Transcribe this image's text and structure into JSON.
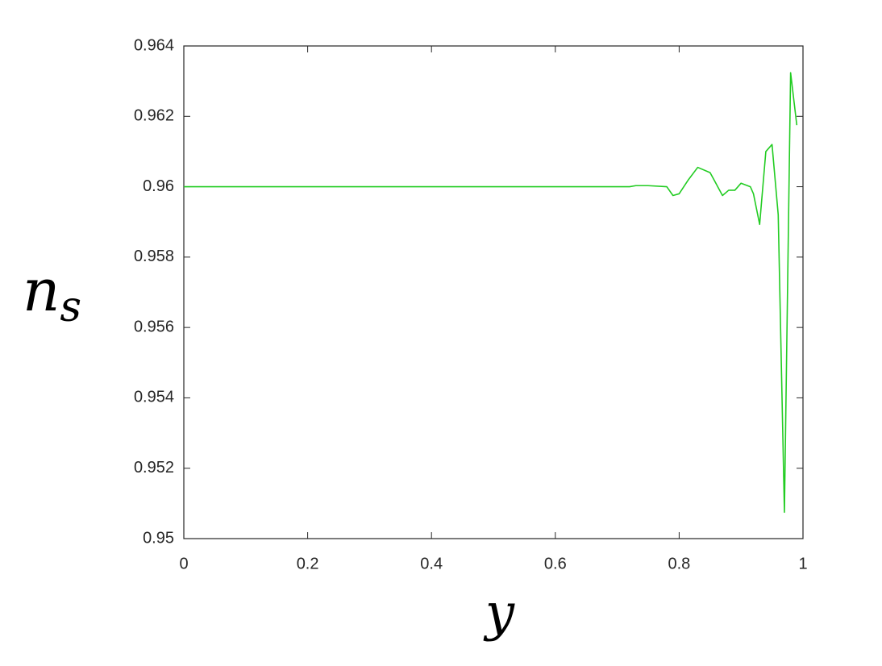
{
  "chart_data": {
    "type": "line",
    "xlabel": "y",
    "ylabel": {
      "text": "n",
      "subscript": "s"
    },
    "x": [
      0,
      0.1,
      0.2,
      0.3,
      0.4,
      0.5,
      0.6,
      0.7,
      0.72,
      0.73,
      0.75,
      0.78,
      0.79,
      0.8,
      0.815,
      0.83,
      0.85,
      0.87,
      0.88,
      0.89,
      0.9,
      0.915,
      0.92,
      0.93,
      0.94,
      0.95,
      0.96,
      0.97,
      0.98,
      0.99
    ],
    "series": [
      {
        "color": "#22cc22",
        "values": [
          0.96,
          0.96,
          0.96,
          0.96,
          0.96,
          0.96,
          0.96,
          0.96,
          0.96,
          0.96003,
          0.96003,
          0.96,
          0.95975,
          0.9598,
          0.9602,
          0.96055,
          0.9604,
          0.95975,
          0.9599,
          0.9599,
          0.9601,
          0.96,
          0.9598,
          0.95893,
          0.961,
          0.9612,
          0.9592,
          0.95075,
          0.96324,
          0.96175
        ]
      }
    ],
    "xlim": [
      0,
      1
    ],
    "xticks": [
      0,
      0.2,
      0.4,
      0.6,
      0.8,
      1
    ],
    "ylim": [
      0.95,
      0.964
    ],
    "yticks": [
      0.95,
      0.952,
      0.954,
      0.956,
      0.958,
      0.96,
      0.962,
      0.964
    ],
    "grid": false
  }
}
